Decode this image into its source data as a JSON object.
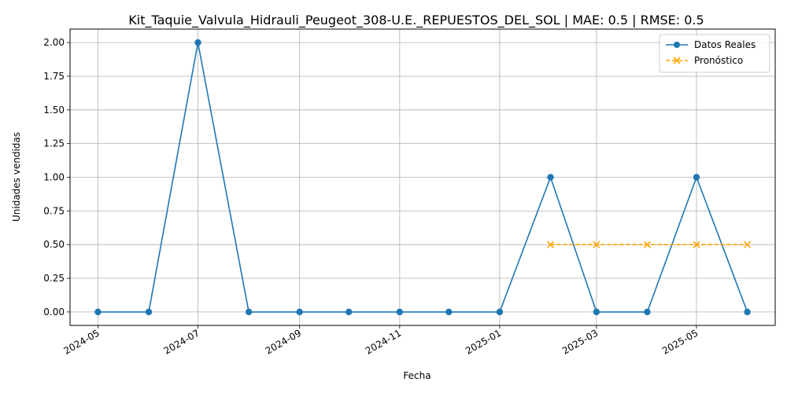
{
  "chart_data": {
    "type": "line",
    "title": "Kit_Taquie_Valvula_Hidrauli_Peugeot_308-U.E._REPUESTOS_DEL_SOL | MAE: 0.5 | RMSE: 0.5",
    "xlabel": "Fecha",
    "ylabel": "Unidades vendidas",
    "ylim": [
      -0.1,
      2.1
    ],
    "yticks": [
      "0.00",
      "0.25",
      "0.50",
      "0.75",
      "1.00",
      "1.25",
      "1.50",
      "1.75",
      "2.00"
    ],
    "xticks": [
      "2024-05",
      "2024-07",
      "2024-09",
      "2024-11",
      "2025-01",
      "2025-03",
      "2025-05"
    ],
    "xlim": [
      "2024-04-14",
      "2025-06-18"
    ],
    "grid": true,
    "legend_position": "top-right",
    "series": [
      {
        "name": "Datos Reales",
        "color": "#1f77b4",
        "style": "solid",
        "marker": "circle",
        "x": [
          "2024-05-01",
          "2024-06-01",
          "2024-07-01",
          "2024-08-01",
          "2024-09-01",
          "2024-10-01",
          "2024-11-01",
          "2024-12-01",
          "2025-01-01",
          "2025-02-01",
          "2025-03-01",
          "2025-04-01",
          "2025-05-01",
          "2025-06-01"
        ],
        "values": [
          0,
          0,
          2,
          0,
          0,
          0,
          0,
          0,
          0,
          1,
          0,
          0,
          1,
          0
        ]
      },
      {
        "name": "Pronóstico",
        "color": "#ffa500",
        "style": "dashed",
        "marker": "x",
        "x": [
          "2025-02-01",
          "2025-03-01",
          "2025-04-01",
          "2025-05-01",
          "2025-06-01"
        ],
        "values": [
          0.5,
          0.5,
          0.5,
          0.5,
          0.5
        ]
      }
    ]
  }
}
